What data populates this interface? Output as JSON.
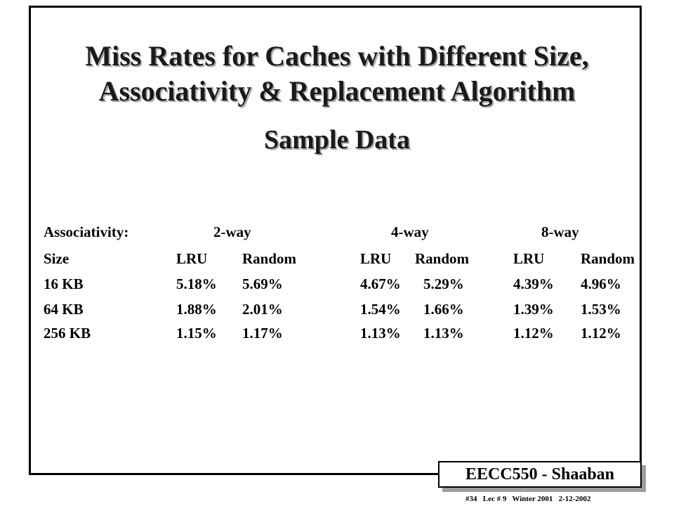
{
  "slide": {
    "title_line1": "Miss Rates for Caches with Different Size,",
    "title_line2": "Associativity & Replacement Algorithm",
    "subtitle": "Sample Data"
  },
  "table": {
    "assoc_label": "Associativity:",
    "ways": [
      "2-way",
      "4-way",
      "8-way"
    ],
    "size_label": "Size",
    "policies": [
      "LRU",
      "Random",
      "LRU",
      "Random",
      "LRU",
      "Random"
    ],
    "rows": [
      {
        "size": "16 KB",
        "values": [
          "5.18%",
          "5.69%",
          "4.67%",
          "5.29%",
          "4.39%",
          "4.96%"
        ]
      },
      {
        "size": "64 KB",
        "values": [
          "1.88%",
          "2.01%",
          "1.54%",
          "1.66%",
          "1.39%",
          "1.53%"
        ]
      },
      {
        "size": "256 KB",
        "values": [
          "1.15%",
          "1.17%",
          "1.13%",
          "1.13%",
          "1.12%",
          "1.12%"
        ]
      }
    ]
  },
  "badge": {
    "label": "EECC550 - Shaaban"
  },
  "footer": {
    "text": "#34   Lec # 9   Winter 2001   2-12-2002"
  }
}
